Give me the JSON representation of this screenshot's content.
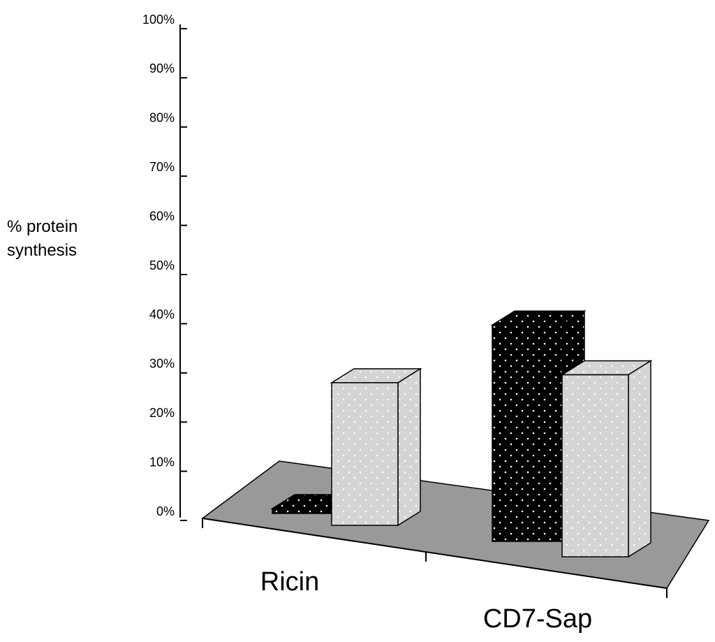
{
  "chart_data": {
    "type": "bar3d",
    "ylabel": "% protein synthesis",
    "categories": [
      "Ricin",
      "CD7-Sap"
    ],
    "series": [
      {
        "color": "#000000",
        "values": [
          1,
          44
        ]
      },
      {
        "color": "#d4d4d4",
        "values": [
          29,
          37
        ]
      }
    ],
    "ylim": [
      0,
      100
    ],
    "yticks": [
      {
        "value": 0,
        "label": "0%"
      },
      {
        "value": 10,
        "label": "10%"
      },
      {
        "value": 20,
        "label": "20%"
      },
      {
        "value": 30,
        "label": "30%"
      },
      {
        "value": 40,
        "label": "40%"
      },
      {
        "value": 50,
        "label": "50%"
      },
      {
        "value": 60,
        "label": "60%"
      },
      {
        "value": 70,
        "label": "70%"
      },
      {
        "value": 80,
        "label": "80%"
      },
      {
        "value": 90,
        "label": "90%"
      },
      {
        "value": 100,
        "label": "100%"
      }
    ]
  }
}
